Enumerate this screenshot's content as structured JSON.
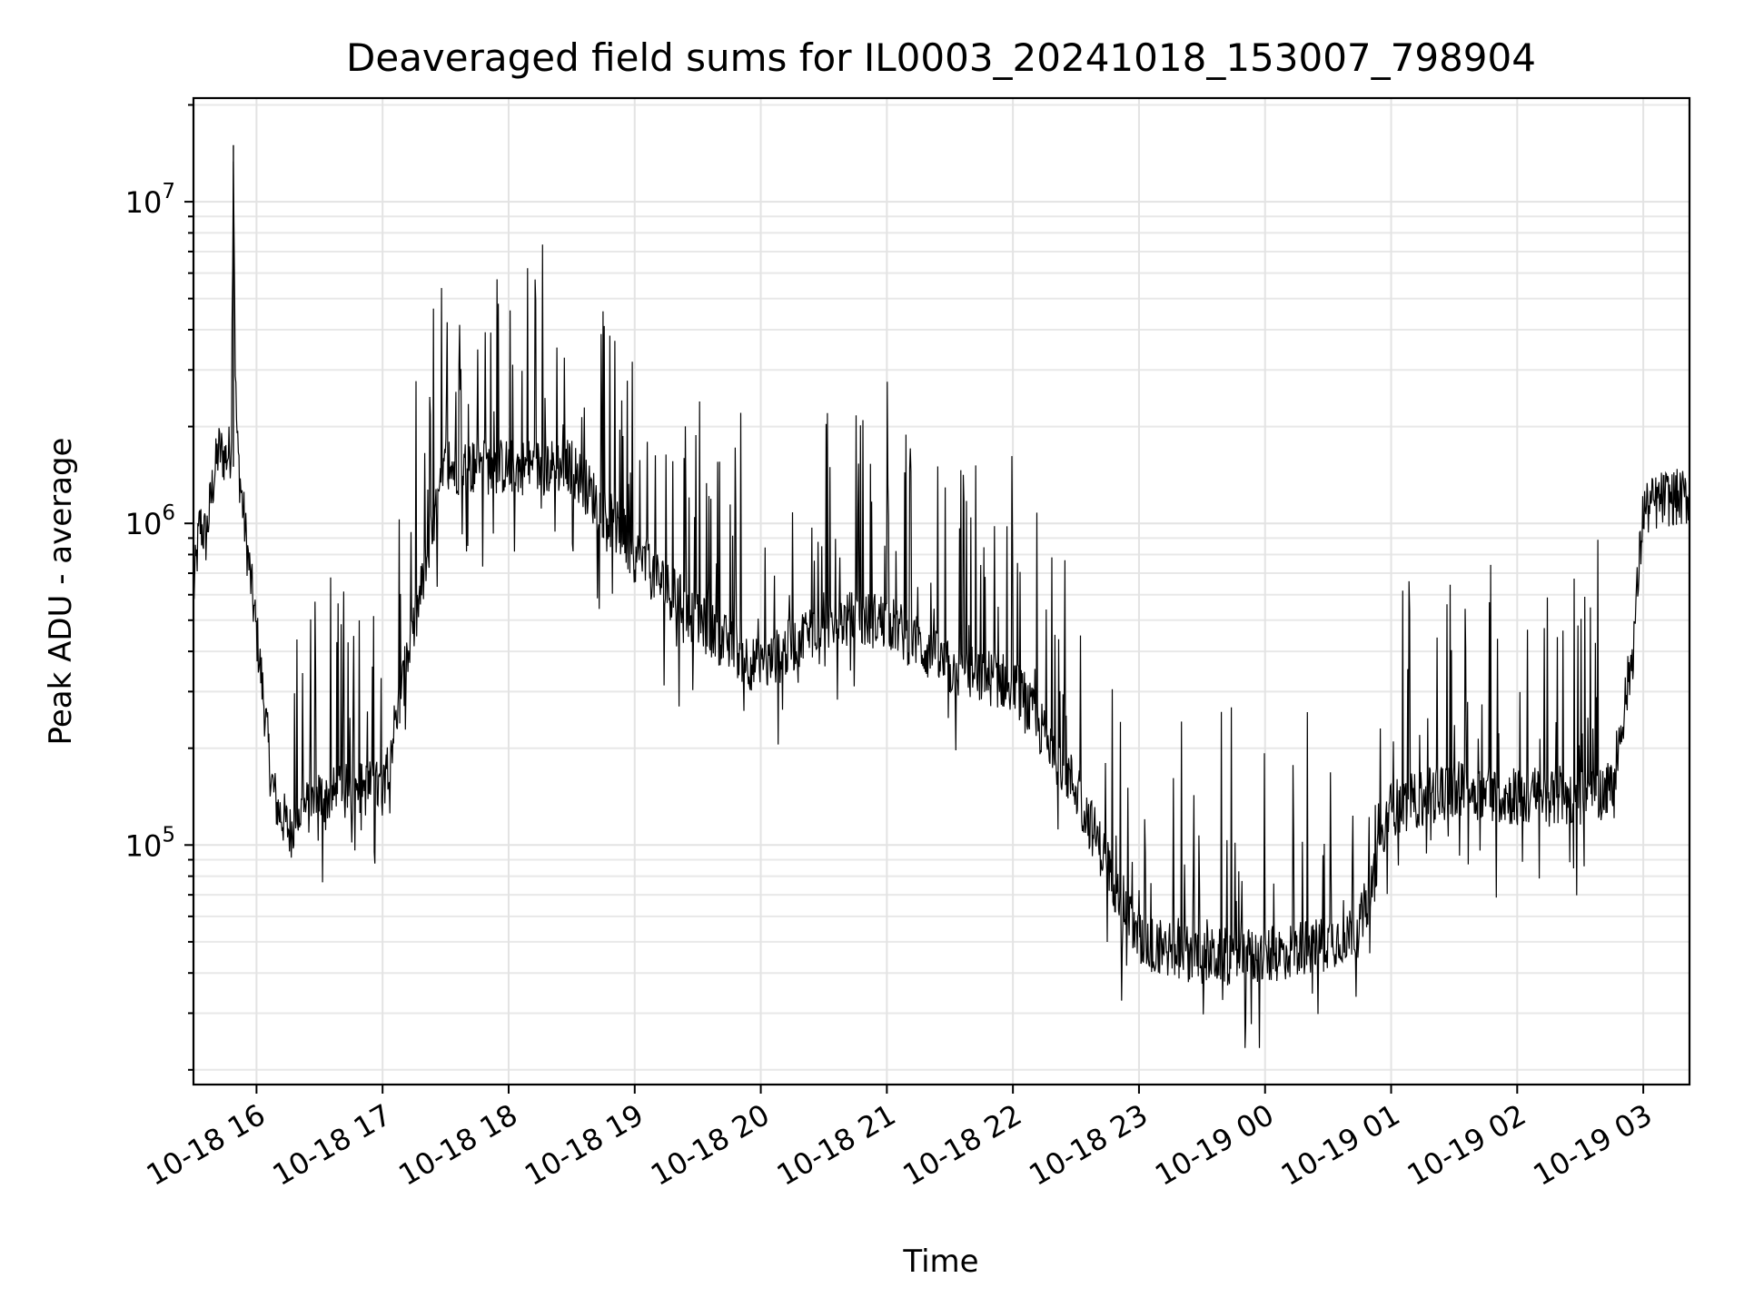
{
  "chart_data": {
    "type": "line",
    "title": "Deaveraged field sums for IL0003_20241018_153007_798904",
    "xlabel": "Time",
    "ylabel": "Peak ADU - average",
    "yscale": "log",
    "ylim": [
      18000,
      21000000
    ],
    "xlim": [
      "2024-10-18 15:30",
      "2024-10-19 03:22"
    ],
    "grid": true,
    "x_ticks": [
      {
        "t": "2024-10-18 16:00",
        "label": "10-18 16"
      },
      {
        "t": "2024-10-18 17:00",
        "label": "10-18 17"
      },
      {
        "t": "2024-10-18 18:00",
        "label": "10-18 18"
      },
      {
        "t": "2024-10-18 19:00",
        "label": "10-18 19"
      },
      {
        "t": "2024-10-18 20:00",
        "label": "10-18 20"
      },
      {
        "t": "2024-10-18 21:00",
        "label": "10-18 21"
      },
      {
        "t": "2024-10-18 22:00",
        "label": "10-18 22"
      },
      {
        "t": "2024-10-18 23:00",
        "label": "10-18 23"
      },
      {
        "t": "2024-10-19 00:00",
        "label": "10-19 00"
      },
      {
        "t": "2024-10-19 01:00",
        "label": "10-19 01"
      },
      {
        "t": "2024-10-19 02:00",
        "label": "10-19 02"
      },
      {
        "t": "2024-10-19 03:00",
        "label": "10-19 03"
      }
    ],
    "y_ticks": [
      {
        "value": 100000,
        "base": "10",
        "exp": "5"
      },
      {
        "value": 1000000,
        "base": "10",
        "exp": "6"
      },
      {
        "value": 10000000,
        "base": "10",
        "exp": "7"
      }
    ],
    "series": [
      {
        "color": "#000000",
        "x": [
          "2024-10-18 15:30",
          "2024-10-18 15:33",
          "2024-10-18 15:36",
          "2024-10-18 15:39",
          "2024-10-18 15:42",
          "2024-10-18 15:45",
          "2024-10-18 15:48",
          "2024-10-18 15:49",
          "2024-10-18 15:50",
          "2024-10-18 15:51",
          "2024-10-18 15:52",
          "2024-10-18 15:55",
          "2024-10-18 15:58",
          "2024-10-18 16:01",
          "2024-10-18 16:04",
          "2024-10-18 16:07",
          "2024-10-18 16:10",
          "2024-10-18 16:13",
          "2024-10-18 16:16",
          "2024-10-18 16:20",
          "2024-10-18 16:30",
          "2024-10-18 16:40",
          "2024-10-18 16:50",
          "2024-10-18 17:00",
          "2024-10-18 17:30",
          "2024-10-18 18:00",
          "2024-10-18 18:30",
          "2024-10-18 19:00",
          "2024-10-18 19:30",
          "2024-10-18 20:00",
          "2024-10-18 20:30",
          "2024-10-18 21:00",
          "2024-10-18 21:30",
          "2024-10-18 22:00",
          "2024-10-18 22:30",
          "2024-10-18 23:00",
          "2024-10-18 23:30",
          "2024-10-19 00:00",
          "2024-10-19 00:30",
          "2024-10-19 00:45",
          "2024-10-19 01:00",
          "2024-10-19 01:30",
          "2024-10-19 02:00",
          "2024-10-19 02:30",
          "2024-10-19 02:45",
          "2024-10-19 02:55",
          "2024-10-19 03:00",
          "2024-10-19 03:10",
          "2024-10-19 03:20"
        ],
        "y": [
          600000,
          1000000,
          900000,
          1300000,
          1700000,
          1600000,
          1700000,
          15000000,
          2600000,
          1700000,
          1400000,
          900000,
          600000,
          400000,
          260000,
          160000,
          130000,
          120000,
          110000,
          125000,
          140000,
          145000,
          150000,
          150000,
          1500000,
          1500000,
          1500000,
          800000,
          500000,
          350000,
          500000,
          500000,
          350000,
          320000,
          150000,
          50000,
          45000,
          45000,
          50000,
          55000,
          130000,
          150000,
          140000,
          140000,
          150000,
          400000,
          1100000,
          1200000,
          1200000
        ]
      }
    ]
  }
}
